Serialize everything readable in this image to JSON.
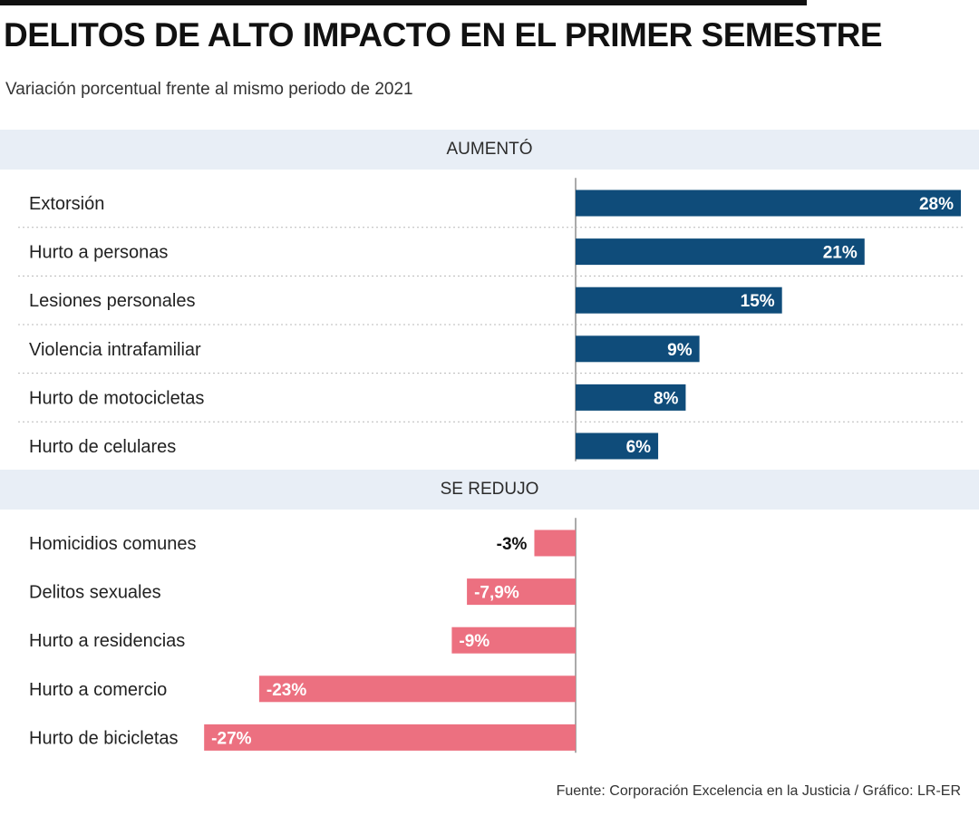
{
  "title": "DELITOS DE ALTO IMPACTO EN EL PRIMER SEMESTRE",
  "subtitle": "Variación porcentual frente al mismo periodo de 2021",
  "source": "Fuente: Corporación Excelencia en la Justicia / Gráfico: LR-ER",
  "colors": {
    "positive": "#0f4c7a",
    "negative": "#ec7080",
    "band": "#e8eef6",
    "grid": "#b8b8b8"
  },
  "chart_data": {
    "type": "bar",
    "orientation": "horizontal",
    "groups": [
      {
        "label": "AUMENTÓ",
        "items": [
          {
            "category": "Extorsión",
            "value": 28,
            "label": "28%"
          },
          {
            "category": "Hurto a personas",
            "value": 21,
            "label": "21%"
          },
          {
            "category": "Lesiones personales",
            "value": 15,
            "label": "15%"
          },
          {
            "category": "Violencia intrafamiliar",
            "value": 9,
            "label": "9%"
          },
          {
            "category": "Hurto de motocicletas",
            "value": 8,
            "label": "8%"
          },
          {
            "category": "Hurto de celulares",
            "value": 6,
            "label": "6%"
          }
        ]
      },
      {
        "label": "SE REDUJO",
        "items": [
          {
            "category": "Homicidios comunes",
            "value": -3,
            "label": "-3%"
          },
          {
            "category": "Delitos sexuales",
            "value": -7.9,
            "label": "-7,9%"
          },
          {
            "category": "Hurto a residencias",
            "value": -9,
            "label": "-9%"
          },
          {
            "category": "Hurto a comercio",
            "value": -23,
            "label": "-23%"
          },
          {
            "category": "Hurto de bicicletas",
            "value": -27,
            "label": "-27%"
          }
        ]
      }
    ]
  }
}
